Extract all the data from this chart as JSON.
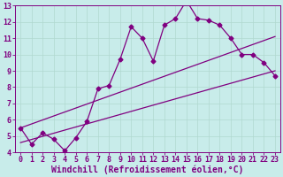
{
  "title": "",
  "xlabel": "Windchill (Refroidissement éolien,°C)",
  "ylabel": "",
  "bg_color": "#c8ecea",
  "line_color": "#800080",
  "grid_color": "#b0d8d0",
  "xlim": [
    -0.5,
    23.5
  ],
  "ylim": [
    4,
    13
  ],
  "xticks": [
    0,
    1,
    2,
    3,
    4,
    5,
    6,
    7,
    8,
    9,
    10,
    11,
    12,
    13,
    14,
    15,
    16,
    17,
    18,
    19,
    20,
    21,
    22,
    23
  ],
  "yticks": [
    4,
    5,
    6,
    7,
    8,
    9,
    10,
    11,
    12,
    13
  ],
  "curve1_x": [
    0,
    1,
    2,
    3,
    4,
    5,
    6,
    7,
    8,
    9,
    10,
    11,
    12,
    13,
    14,
    15,
    16,
    17,
    18,
    19,
    20,
    21,
    22,
    23
  ],
  "curve1_y": [
    5.5,
    4.5,
    5.2,
    4.8,
    4.1,
    4.9,
    5.9,
    7.9,
    8.1,
    9.7,
    11.7,
    11.0,
    9.6,
    11.8,
    12.2,
    13.3,
    12.2,
    12.1,
    11.8,
    11.0,
    10.0,
    10.0,
    9.5,
    8.7
  ],
  "curve2_x": [
    0,
    23
  ],
  "curve2_y": [
    4.6,
    9.0
  ],
  "curve3_x": [
    0,
    23
  ],
  "curve3_y": [
    5.5,
    11.1
  ],
  "marker": "D",
  "markersize": 2.5,
  "linewidth": 0.9,
  "tick_fontsize": 6,
  "label_fontsize": 7
}
